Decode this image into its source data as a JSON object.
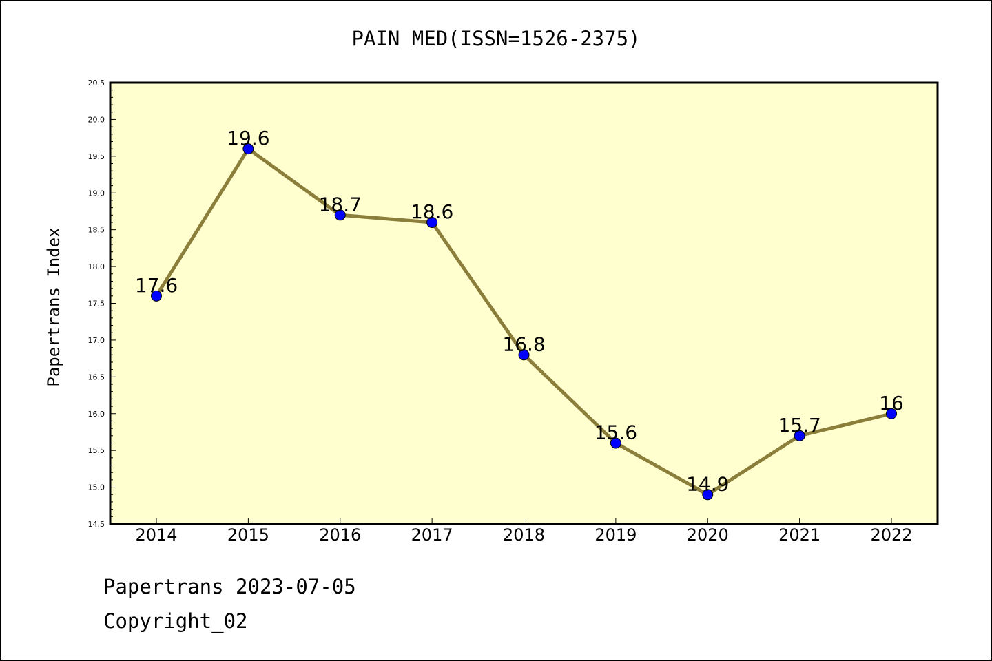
{
  "chart_data": {
    "type": "line",
    "title": "PAIN MED(ISSN=1526-2375)",
    "xlabel": "",
    "ylabel": "Papertrans Index",
    "categories": [
      "2014",
      "2015",
      "2016",
      "2017",
      "2018",
      "2019",
      "2020",
      "2021",
      "2022"
    ],
    "values": [
      17.6,
      19.6,
      18.7,
      18.6,
      16.8,
      15.6,
      14.9,
      15.7,
      16
    ],
    "data_labels": [
      "17.6",
      "19.6",
      "18.7",
      "18.6",
      "16.8",
      "15.6",
      "14.9",
      "15.7",
      "16"
    ],
    "ylim": [
      14.5,
      20.5
    ],
    "yticks": [
      "14.5",
      "15.0",
      "15.5",
      "16.0",
      "16.5",
      "17.0",
      "17.5",
      "18.0",
      "18.5",
      "19.0",
      "19.5",
      "20.0",
      "20.5"
    ],
    "grid": false,
    "legend": "none",
    "colors": {
      "plot_background": "#ffffd0",
      "line": "#8b7e3a",
      "marker": "#0000ff"
    }
  },
  "footer": {
    "line1": "Papertrans 2023-07-05",
    "line2": "Copyright_02"
  }
}
